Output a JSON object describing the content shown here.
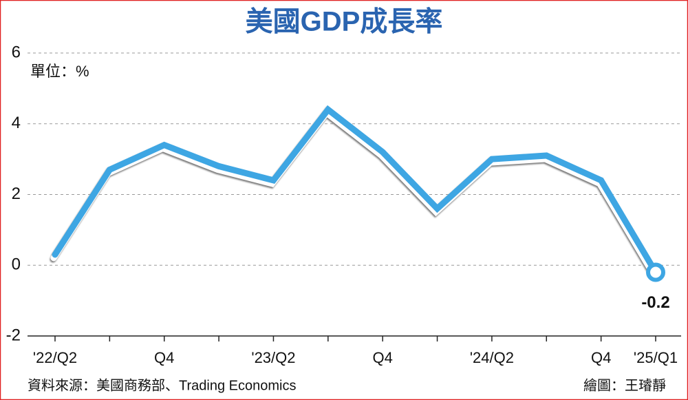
{
  "chart_data": {
    "type": "line",
    "title": "美國GDP成長率",
    "unit_label": "單位：%",
    "source": "資料來源：美國商務部、Trading Economics",
    "credit": "繪圖：王璿靜",
    "categories": [
      "'22/Q2",
      null,
      "Q4",
      null,
      "'23/Q2",
      null,
      "Q4",
      null,
      "'24/Q2",
      null,
      "Q4",
      "'25/Q1"
    ],
    "values": [
      0.3,
      2.7,
      3.4,
      2.8,
      2.4,
      4.4,
      3.2,
      1.6,
      3.0,
      3.1,
      2.4,
      -0.2
    ],
    "color": "#3ea6e3",
    "ylim": [
      -2,
      6
    ],
    "yticks": [
      -2,
      0,
      2,
      4,
      6
    ],
    "grid": true
  }
}
